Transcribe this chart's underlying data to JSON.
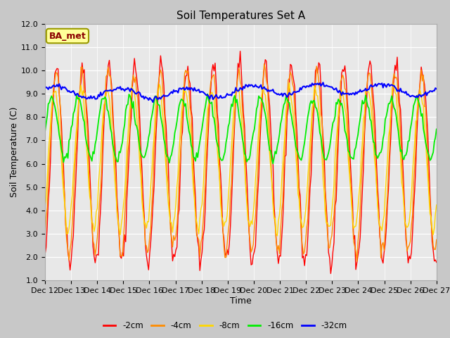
{
  "title": "Soil Temperatures Set A",
  "xlabel": "Time",
  "ylabel": "Soil Temperature (C)",
  "ylim": [
    1.0,
    12.0
  ],
  "yticks": [
    1.0,
    2.0,
    3.0,
    4.0,
    5.0,
    6.0,
    7.0,
    8.0,
    9.0,
    10.0,
    11.0,
    12.0
  ],
  "xtick_labels": [
    "Dec 12",
    "Dec 13",
    "Dec 14",
    "Dec 15",
    "Dec 16",
    "Dec 17",
    "Dec 18",
    "Dec 19",
    "Dec 20",
    "Dec 21",
    "Dec 22",
    "Dec 23",
    "Dec 24",
    "Dec 25",
    "Dec 26",
    "Dec 27"
  ],
  "colors": {
    "-2cm": "#FF0000",
    "-4cm": "#FF8C00",
    "-8cm": "#FFD700",
    "-16cm": "#00EE00",
    "-32cm": "#0000FF"
  },
  "legend_labels": [
    "-2cm",
    "-4cm",
    "-8cm",
    "-16cm",
    "-32cm"
  ],
  "annotation_text": "BA_met",
  "annotation_bg": "#FFFF99",
  "annotation_border": "#999900",
  "fig_bg": "#C8C8C8",
  "plot_bg": "#E8E8E8",
  "title_fontsize": 11,
  "label_fontsize": 9,
  "tick_fontsize": 8
}
